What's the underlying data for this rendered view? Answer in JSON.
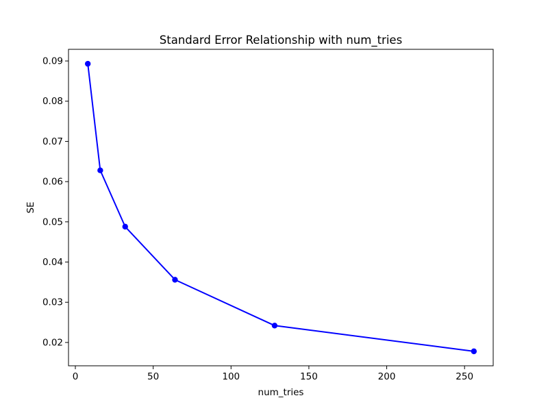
{
  "figure": {
    "background_color": "#ffffff"
  },
  "chart_data": {
    "type": "line",
    "title": "Standard Error Relationship with num_tries",
    "xlabel": "num_tries",
    "ylabel": "SE",
    "x": [
      8,
      16,
      32,
      64,
      128,
      256
    ],
    "y": [
      0.0893,
      0.0628,
      0.0488,
      0.0356,
      0.0242,
      0.0178
    ],
    "series": [
      {
        "name": "SE",
        "x": [
          8,
          16,
          32,
          64,
          128,
          256
        ],
        "values": [
          0.0893,
          0.0628,
          0.0488,
          0.0356,
          0.0242,
          0.0178
        ]
      }
    ],
    "xlim": [
      -4.4,
      268.4
    ],
    "ylim": [
      0.0142,
      0.0929
    ],
    "xticks": [
      0,
      50,
      100,
      150,
      200,
      250
    ],
    "xtick_labels": [
      "0",
      "50",
      "100",
      "150",
      "200",
      "250"
    ],
    "yticks": [
      0.02,
      0.03,
      0.04,
      0.05,
      0.06,
      0.07,
      0.08,
      0.09
    ],
    "ytick_labels": [
      "0.02",
      "0.03",
      "0.04",
      "0.05",
      "0.06",
      "0.07",
      "0.08",
      "0.09"
    ],
    "grid": false,
    "legend": null,
    "line_color": "#0000ff",
    "marker": "circle",
    "marker_color": "#0000ff",
    "axis_color": "#000000",
    "text_color": "#000000"
  }
}
